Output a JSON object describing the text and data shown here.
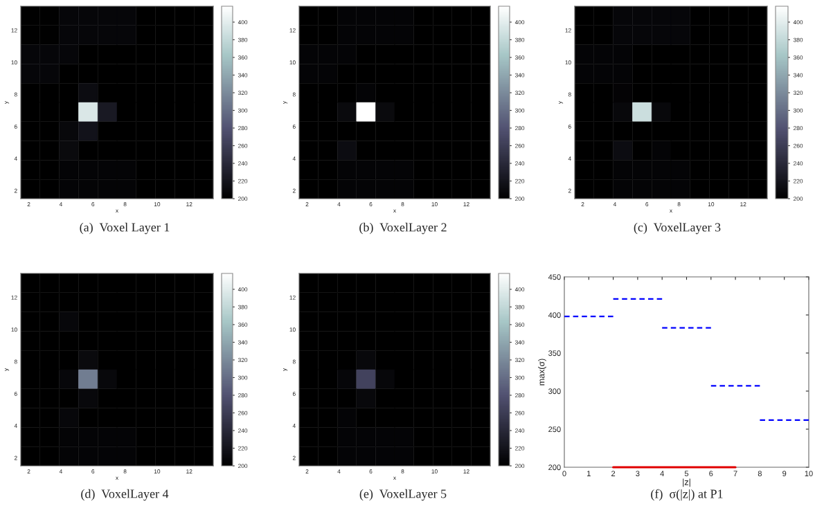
{
  "chart_data": [
    {
      "type": "heatmap",
      "title": "(a)  Voxel Layer 1",
      "xlabel": "x",
      "ylabel": "y",
      "x": [
        2.1,
        3.3,
        4.5,
        5.7,
        6.9,
        8.1,
        9.3,
        10.5,
        11.7,
        12.9
      ],
      "y": [
        12.9,
        11.7,
        10.5,
        9.3,
        8.1,
        6.9,
        5.7,
        4.5,
        3.3,
        2.1
      ],
      "xlim": [
        1.5,
        13.5
      ],
      "ylim": [
        1.5,
        13.5
      ],
      "xticks": [
        2,
        4,
        6,
        8,
        10,
        12
      ],
      "yticks": [
        2,
        4,
        6,
        8,
        10,
        12
      ],
      "clim": [
        200,
        418
      ],
      "cticks": [
        200,
        220,
        240,
        260,
        280,
        300,
        320,
        340,
        360,
        380,
        400
      ],
      "cells": [
        [
          201,
          201,
          206,
          206,
          206,
          206,
          200,
          200,
          200,
          200
        ],
        [
          201,
          201,
          206,
          206,
          206,
          206,
          200,
          200,
          200,
          200
        ],
        [
          206,
          206,
          206,
          200,
          200,
          200,
          200,
          200,
          200,
          200
        ],
        [
          206,
          206,
          200,
          200,
          200,
          200,
          200,
          200,
          200,
          200
        ],
        [
          200,
          200,
          200,
          212,
          200,
          200,
          200,
          200,
          200,
          200
        ],
        [
          200,
          200,
          200,
          395,
          225,
          200,
          200,
          200,
          200,
          200
        ],
        [
          200,
          200,
          208,
          218,
          200,
          200,
          200,
          200,
          200,
          200
        ],
        [
          200,
          200,
          210,
          200,
          200,
          200,
          200,
          200,
          200,
          200
        ],
        [
          200,
          200,
          205,
          205,
          205,
          205,
          200,
          200,
          200,
          200
        ],
        [
          200,
          200,
          205,
          205,
          205,
          205,
          200,
          200,
          200,
          200
        ]
      ]
    },
    {
      "type": "heatmap",
      "title": "(b)  VoxelLayer 2",
      "xlabel": "x",
      "ylabel": "y",
      "x": [
        2.1,
        3.3,
        4.5,
        5.7,
        6.9,
        8.1,
        9.3,
        10.5,
        11.7,
        12.9
      ],
      "y": [
        12.9,
        11.7,
        10.5,
        9.3,
        8.1,
        6.9,
        5.7,
        4.5,
        3.3,
        2.1
      ],
      "xlim": [
        1.5,
        13.5
      ],
      "ylim": [
        1.5,
        13.5
      ],
      "xticks": [
        2,
        4,
        6,
        8,
        10,
        12
      ],
      "yticks": [
        2,
        4,
        6,
        8,
        10,
        12
      ],
      "clim": [
        200,
        418
      ],
      "cticks": [
        200,
        220,
        240,
        260,
        280,
        300,
        320,
        340,
        360,
        380,
        400
      ],
      "cells": [
        [
          200,
          200,
          205,
          205,
          205,
          205,
          200,
          200,
          200,
          200
        ],
        [
          200,
          200,
          205,
          205,
          205,
          205,
          200,
          200,
          200,
          200
        ],
        [
          205,
          205,
          205,
          200,
          200,
          200,
          200,
          200,
          200,
          200
        ],
        [
          205,
          205,
          200,
          200,
          200,
          200,
          200,
          200,
          200,
          200
        ],
        [
          200,
          200,
          200,
          205,
          200,
          200,
          200,
          200,
          200,
          200
        ],
        [
          200,
          200,
          210,
          418,
          210,
          200,
          200,
          200,
          200,
          200
        ],
        [
          200,
          200,
          200,
          200,
          200,
          200,
          200,
          200,
          200,
          200
        ],
        [
          200,
          200,
          212,
          200,
          200,
          200,
          200,
          200,
          200,
          200
        ],
        [
          200,
          200,
          205,
          205,
          205,
          205,
          200,
          200,
          200,
          200
        ],
        [
          200,
          200,
          205,
          205,
          205,
          205,
          200,
          200,
          200,
          200
        ]
      ]
    },
    {
      "type": "heatmap",
      "title": "(c)  VoxelLayer 3",
      "xlabel": "x",
      "ylabel": "y",
      "x": [
        2.1,
        3.3,
        4.5,
        5.7,
        6.9,
        8.1,
        9.3,
        10.5,
        11.7,
        12.9
      ],
      "y": [
        12.9,
        11.7,
        10.5,
        9.3,
        8.1,
        6.9,
        5.7,
        4.5,
        3.3,
        2.1
      ],
      "xlim": [
        1.5,
        13.5
      ],
      "ylim": [
        1.5,
        13.5
      ],
      "xticks": [
        2,
        4,
        6,
        8,
        10,
        12
      ],
      "yticks": [
        2,
        4,
        6,
        8,
        10,
        12
      ],
      "clim": [
        200,
        418
      ],
      "cticks": [
        200,
        220,
        240,
        260,
        280,
        300,
        320,
        340,
        360,
        380,
        400
      ],
      "cells": [
        [
          200,
          200,
          206,
          206,
          206,
          206,
          200,
          200,
          200,
          200
        ],
        [
          200,
          200,
          206,
          206,
          206,
          206,
          200,
          200,
          200,
          200
        ],
        [
          205,
          205,
          205,
          200,
          200,
          200,
          200,
          200,
          200,
          200
        ],
        [
          205,
          205,
          205,
          200,
          200,
          200,
          200,
          200,
          200,
          200
        ],
        [
          200,
          200,
          204,
          200,
          200,
          200,
          200,
          200,
          200,
          200
        ],
        [
          200,
          200,
          208,
          385,
          208,
          200,
          200,
          200,
          200,
          200
        ],
        [
          200,
          200,
          200,
          200,
          200,
          200,
          200,
          200,
          200,
          200
        ],
        [
          200,
          200,
          212,
          200,
          205,
          200,
          200,
          200,
          200,
          200
        ],
        [
          200,
          200,
          205,
          205,
          205,
          205,
          200,
          200,
          200,
          200
        ],
        [
          200,
          200,
          205,
          205,
          205,
          205,
          200,
          200,
          200,
          200
        ]
      ]
    },
    {
      "type": "heatmap",
      "title": "(d)  VoxelLayer 4",
      "xlabel": "x",
      "ylabel": "y",
      "x": [
        2.1,
        3.3,
        4.5,
        5.7,
        6.9,
        8.1,
        9.3,
        10.5,
        11.7,
        12.9
      ],
      "y": [
        12.9,
        11.7,
        10.5,
        9.3,
        8.1,
        6.9,
        5.7,
        4.5,
        3.3,
        2.1
      ],
      "xlim": [
        1.5,
        13.5
      ],
      "ylim": [
        1.5,
        13.5
      ],
      "xticks": [
        2,
        4,
        6,
        8,
        10,
        12
      ],
      "yticks": [
        2,
        4,
        6,
        8,
        10,
        12
      ],
      "clim": [
        200,
        418
      ],
      "cticks": [
        200,
        220,
        240,
        260,
        280,
        300,
        320,
        340,
        360,
        380,
        400
      ],
      "cells": [
        [
          200,
          200,
          200,
          200,
          200,
          200,
          200,
          200,
          200,
          200
        ],
        [
          200,
          200,
          200,
          200,
          200,
          200,
          200,
          200,
          200,
          200
        ],
        [
          200,
          200,
          207,
          200,
          200,
          200,
          200,
          200,
          200,
          200
        ],
        [
          200,
          200,
          200,
          200,
          200,
          200,
          200,
          200,
          200,
          200
        ],
        [
          200,
          200,
          200,
          210,
          200,
          200,
          200,
          200,
          200,
          200
        ],
        [
          200,
          200,
          207,
          310,
          208,
          200,
          200,
          200,
          200,
          200
        ],
        [
          200,
          200,
          200,
          208,
          200,
          200,
          200,
          200,
          200,
          200
        ],
        [
          200,
          200,
          207,
          200,
          200,
          200,
          200,
          200,
          200,
          200
        ],
        [
          200,
          200,
          205,
          205,
          205,
          205,
          200,
          200,
          200,
          200
        ],
        [
          200,
          200,
          205,
          205,
          205,
          205,
          200,
          200,
          200,
          200
        ]
      ]
    },
    {
      "type": "heatmap",
      "title": "(e)  VoxelLayer 5",
      "xlabel": "x",
      "ylabel": "y",
      "x": [
        2.1,
        3.3,
        4.5,
        5.7,
        6.9,
        8.1,
        9.3,
        10.5,
        11.7,
        12.9
      ],
      "y": [
        12.9,
        11.7,
        10.5,
        9.3,
        8.1,
        6.9,
        5.7,
        4.5,
        3.3,
        2.1
      ],
      "xlim": [
        1.5,
        13.5
      ],
      "ylim": [
        1.5,
        13.5
      ],
      "xticks": [
        2,
        4,
        6,
        8,
        10,
        12
      ],
      "yticks": [
        2,
        4,
        6,
        8,
        10,
        12
      ],
      "clim": [
        200,
        418
      ],
      "cticks": [
        200,
        220,
        240,
        260,
        280,
        300,
        320,
        340,
        360,
        380,
        400
      ],
      "cells": [
        [
          200,
          200,
          200,
          200,
          200,
          200,
          200,
          200,
          200,
          200
        ],
        [
          200,
          200,
          200,
          200,
          200,
          200,
          200,
          200,
          200,
          200
        ],
        [
          200,
          200,
          200,
          200,
          200,
          200,
          200,
          200,
          200,
          200
        ],
        [
          200,
          200,
          200,
          200,
          200,
          200,
          200,
          200,
          200,
          200
        ],
        [
          200,
          200,
          200,
          208,
          200,
          200,
          200,
          200,
          200,
          200
        ],
        [
          200,
          200,
          206,
          265,
          207,
          200,
          200,
          200,
          200,
          200
        ],
        [
          200,
          200,
          200,
          208,
          200,
          200,
          200,
          200,
          200,
          200
        ],
        [
          200,
          200,
          205,
          200,
          200,
          200,
          200,
          200,
          200,
          200
        ],
        [
          200,
          200,
          205,
          205,
          205,
          205,
          200,
          200,
          200,
          200
        ],
        [
          200,
          200,
          205,
          205,
          205,
          205,
          200,
          200,
          200,
          200
        ]
      ]
    },
    {
      "type": "line",
      "title": "(f)  σ(|z|) at P1",
      "xlabel": "|z|",
      "ylabel": "max(σ)",
      "xlim": [
        0,
        10
      ],
      "ylim": [
        200,
        450
      ],
      "xticks": [
        0,
        1,
        2,
        3,
        4,
        5,
        6,
        7,
        8,
        9,
        10
      ],
      "yticks": [
        200,
        250,
        300,
        350,
        400,
        450
      ],
      "series": [
        {
          "color": "#0000ff",
          "line_style": "dashed",
          "x": [
            0,
            2
          ],
          "values": [
            398,
            398
          ]
        },
        {
          "color": "#0000ff",
          "line_style": "dashed",
          "x": [
            2,
            4
          ],
          "values": [
            421,
            421
          ]
        },
        {
          "color": "#0000ff",
          "line_style": "dashed",
          "x": [
            4,
            6
          ],
          "values": [
            383,
            383
          ]
        },
        {
          "color": "#0000ff",
          "line_style": "dashed",
          "x": [
            6,
            8
          ],
          "values": [
            307,
            307
          ]
        },
        {
          "color": "#0000ff",
          "line_style": "dashed",
          "x": [
            8,
            10
          ],
          "values": [
            262,
            262
          ]
        },
        {
          "color": "#e00000",
          "line_style": "solid",
          "x": [
            2,
            7
          ],
          "values": [
            200,
            200
          ]
        }
      ]
    }
  ]
}
